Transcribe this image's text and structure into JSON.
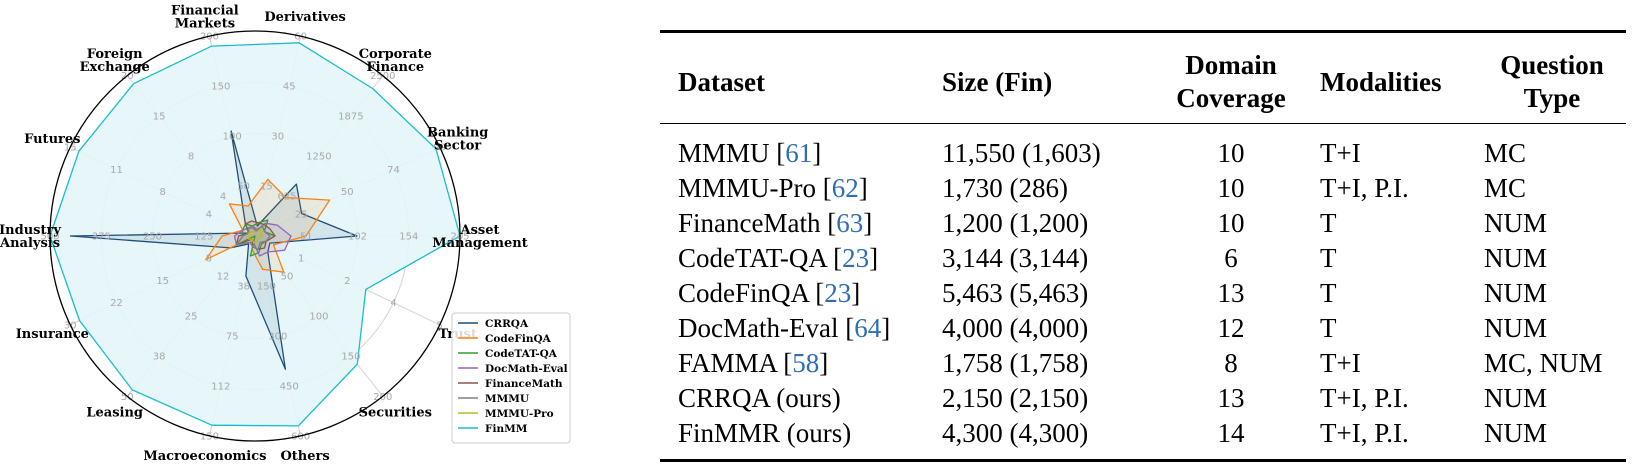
{
  "chart_data": {
    "type": "radar",
    "axes": [
      {
        "label": "Asset\nManagement",
        "ticks": [
          "51",
          "102",
          "154",
          "205"
        ],
        "max": 205
      },
      {
        "label": "Banking\nSector",
        "ticks": [
          "25",
          "50",
          "74",
          "99"
        ],
        "max": 99
      },
      {
        "label": "Corporate\nFinance",
        "ticks": [
          "625",
          "1250",
          "1875",
          "2500"
        ],
        "max": 2500
      },
      {
        "label": "Derivatives",
        "ticks": [
          "15",
          "30",
          "45",
          "60"
        ],
        "max": 60
      },
      {
        "label": "Financial\nMarkets",
        "ticks": [
          "50",
          "100",
          "150",
          "200"
        ],
        "max": 200
      },
      {
        "label": "Foreign\nExchange",
        "ticks": [
          "4",
          "8",
          "15",
          "20"
        ],
        "max": 20
      },
      {
        "label": "Futures",
        "ticks": [
          "4",
          "8",
          "11",
          "15"
        ],
        "max": 15
      },
      {
        "label": "Industry\nAnalysis",
        "ticks": [
          "125",
          "250",
          "375",
          "500"
        ],
        "max": 500
      },
      {
        "label": "Insurance",
        "ticks": [
          "8",
          "15",
          "22",
          "30"
        ],
        "max": 30
      },
      {
        "label": "Leasing",
        "ticks": [
          "12",
          "25",
          "38",
          "50"
        ],
        "max": 50
      },
      {
        "label": "Macroeconomics",
        "ticks": [
          "38",
          "75",
          "112",
          "150"
        ],
        "max": 150
      },
      {
        "label": "Others",
        "ticks": [
          "150",
          "300",
          "450",
          "600"
        ],
        "max": 600
      },
      {
        "label": "Securities",
        "ticks": [
          "50",
          "100",
          "150",
          "200"
        ],
        "max": 200
      },
      {
        "label": "Trust",
        "ticks": [
          "1",
          "2",
          "4",
          "5"
        ],
        "max": 5
      }
    ],
    "grid": true,
    "legend_position": "bottom-right",
    "series": [
      {
        "name": "CRRQA",
        "color": "#1f4e79",
        "values": [
          102,
          25,
          810,
          3,
          105,
          1.5,
          0.5,
          450,
          4,
          2.5,
          30,
          400,
          20,
          0.4
        ]
      },
      {
        "name": "CodeFinQA",
        "color": "#ff7f0e",
        "values": [
          51,
          40,
          600,
          17,
          30,
          4,
          1,
          80,
          8,
          0,
          10,
          100,
          45,
          0.5
        ]
      },
      {
        "name": "CodeTAT-QA",
        "color": "#2ca02c",
        "values": [
          20,
          5,
          250,
          4,
          10,
          1.5,
          1,
          30,
          3,
          0,
          15,
          50,
          10,
          0.3
        ]
      },
      {
        "name": "DocMath-Eval",
        "color": "#9467bd",
        "values": [
          36,
          12,
          200,
          1.5,
          8,
          1,
          1,
          50,
          3,
          2,
          5,
          60,
          20,
          0.8
        ]
      },
      {
        "name": "FinanceMath",
        "color": "#8c564b",
        "values": [
          20,
          8,
          180,
          4,
          15,
          1.5,
          0.5,
          40,
          3,
          1,
          8,
          40,
          15,
          0.3
        ]
      },
      {
        "name": "MMMU",
        "color": "#7f7f7f",
        "values": [
          15,
          5,
          150,
          2,
          10,
          1,
          0.5,
          30,
          3,
          2,
          8,
          40,
          8,
          0.3
        ]
      },
      {
        "name": "MMMU-Pro",
        "color": "#bcbd22",
        "values": [
          8,
          3,
          100,
          1,
          5,
          0.5,
          0.5,
          15,
          1,
          1,
          5,
          20,
          4,
          0.1
        ]
      },
      {
        "name": "FinMM",
        "color": "#17becf",
        "fill": "#e3f5f8",
        "values": [
          205,
          97,
          2300,
          58,
          190,
          19,
          14.3,
          500,
          28.5,
          48,
          142,
          570,
          160,
          3
        ]
      }
    ]
  },
  "table": {
    "headers": [
      "Dataset",
      "Size (Fin)",
      "Domain\nCoverage",
      "Modalities",
      "Question\nType"
    ],
    "rows": [
      {
        "name": "MMMU",
        "cite": "61",
        "size": "11,550 (1,603)",
        "coverage": "10",
        "modalities": "T+I",
        "qtype": "MC"
      },
      {
        "name": "MMMU-Pro",
        "cite": "62",
        "size": "1,730 (286)",
        "coverage": "10",
        "modalities": "T+I, P.I.",
        "qtype": "MC"
      },
      {
        "name": "FinanceMath",
        "cite": "63",
        "size": "1,200 (1,200)",
        "coverage": "10",
        "modalities": "T",
        "qtype": "NUM"
      },
      {
        "name": "CodeTAT-QA",
        "cite": "23",
        "size": "3,144 (3,144)",
        "coverage": "6",
        "modalities": "T",
        "qtype": "NUM"
      },
      {
        "name": "CodeFinQA",
        "cite": "23",
        "size": "5,463 (5,463)",
        "coverage": "13",
        "modalities": "T",
        "qtype": "NUM"
      },
      {
        "name": "DocMath-Eval",
        "cite": "64",
        "size": "4,000 (4,000)",
        "coverage": "12",
        "modalities": "T",
        "qtype": "NUM"
      },
      {
        "name": "FAMMA",
        "cite": "58",
        "size": "1,758 (1,758)",
        "coverage": "8",
        "modalities": "T+I",
        "qtype": "MC, NUM"
      },
      {
        "name": "CRRQA (ours)",
        "cite": "",
        "size": "2,150 (2,150)",
        "coverage": "13",
        "modalities": "T+I, P.I.",
        "qtype": "NUM"
      },
      {
        "name": "FinMMR (ours)",
        "cite": "",
        "size": "4,300 (4,300)",
        "coverage": "14",
        "modalities": "T+I, P.I.",
        "qtype": "NUM"
      }
    ]
  }
}
